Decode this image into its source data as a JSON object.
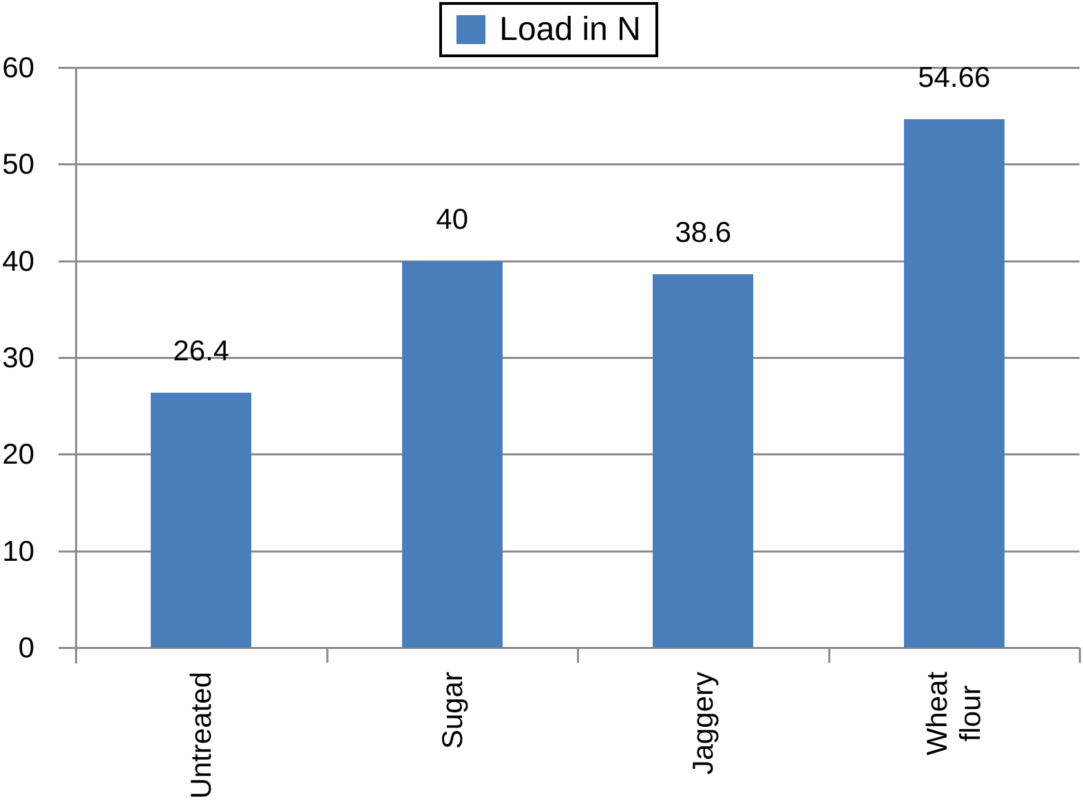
{
  "chart_data": {
    "type": "bar",
    "title": "",
    "categories": [
      "Untreated",
      "Sugar",
      "Jaggery",
      "Wheat flour"
    ],
    "category_display_labels": [
      "Untreated",
      "Sugar",
      "Jaggery",
      "Wheat\nflour"
    ],
    "series": [
      {
        "name": "Load in N",
        "values": [
          26.4,
          40,
          38.6,
          54.66
        ],
        "color": "#4a7ebb"
      }
    ],
    "data_labels": [
      "26.4",
      "40",
      "38.6",
      "54.66"
    ],
    "xlabel": "",
    "ylabel": "",
    "ylim": [
      0,
      60
    ],
    "y_ticks": [
      0,
      10,
      20,
      30,
      40,
      50,
      60
    ],
    "grid": true,
    "legend_position": "top-center",
    "x_label_rotation_deg": 90,
    "colors": {
      "axis": "#8c8c8c",
      "text": "#000000",
      "background": "#ffffff"
    }
  }
}
